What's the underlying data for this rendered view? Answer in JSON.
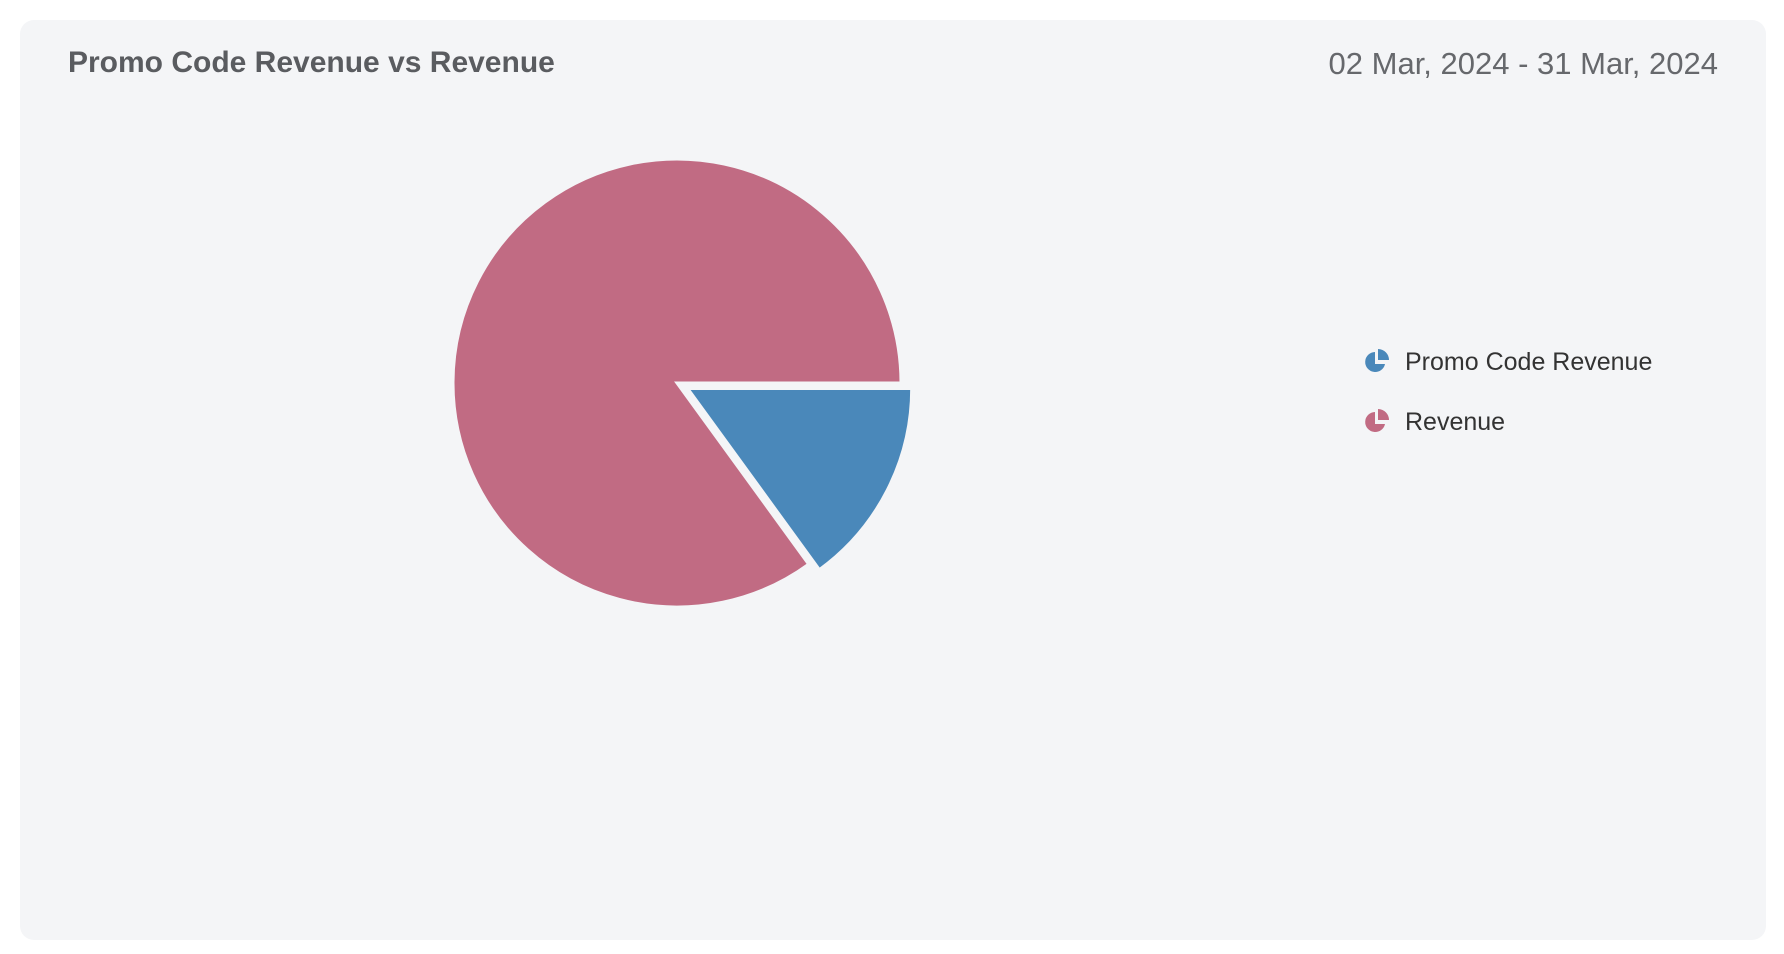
{
  "header": {
    "title": "Promo Code Revenue vs Revenue",
    "date_range": "02 Mar, 2024 - 31 Mar, 2024"
  },
  "chart_data": {
    "type": "pie",
    "title": "Promo Code Revenue vs Revenue",
    "unit": "percent (estimated from slice angles)",
    "slices": [
      {
        "name": "Promo Code Revenue",
        "value": 15,
        "color": "#4a88ba",
        "exploded": true
      },
      {
        "name": "Revenue",
        "value": 85,
        "color": "#c16b83",
        "exploded": false
      }
    ],
    "legend_position": "right"
  }
}
